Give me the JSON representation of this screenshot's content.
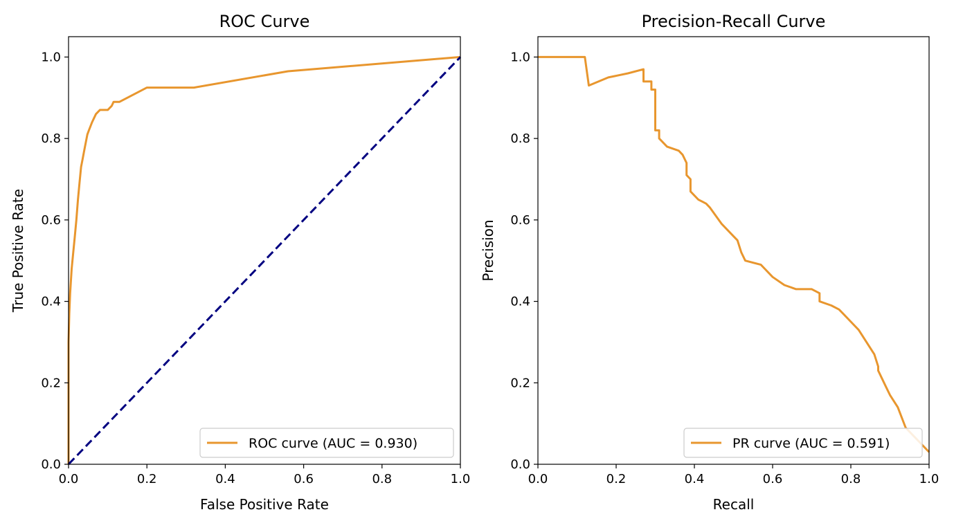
{
  "chart_data": [
    {
      "type": "line",
      "title": "ROC Curve",
      "xlabel": "False Positive Rate",
      "ylabel": "True Positive Rate",
      "xlim": [
        0,
        1
      ],
      "ylim": [
        0,
        1.05
      ],
      "xticks": [
        "0.0",
        "0.2",
        "0.4",
        "0.6",
        "0.8",
        "1.0"
      ],
      "yticks": [
        "0.0",
        "0.2",
        "0.4",
        "0.6",
        "0.8",
        "1.0"
      ],
      "grid": false,
      "legend_position": "lower-right",
      "series": [
        {
          "name": "ROC curve (AUC = 0.930)",
          "color": "#e8962e",
          "style": "solid",
          "x": [
            0.0,
            0.0,
            0.002,
            0.004,
            0.006,
            0.008,
            0.012,
            0.016,
            0.02,
            0.024,
            0.028,
            0.032,
            0.036,
            0.04,
            0.044,
            0.048,
            0.052,
            0.056,
            0.06,
            0.065,
            0.07,
            0.075,
            0.08,
            0.09,
            0.1,
            0.11,
            0.115,
            0.13,
            0.15,
            0.2,
            0.32,
            0.56,
            1.0
          ],
          "y": [
            0.0,
            0.3,
            0.37,
            0.42,
            0.45,
            0.48,
            0.52,
            0.56,
            0.6,
            0.65,
            0.69,
            0.73,
            0.75,
            0.77,
            0.79,
            0.81,
            0.82,
            0.83,
            0.84,
            0.85,
            0.86,
            0.865,
            0.87,
            0.87,
            0.87,
            0.88,
            0.89,
            0.89,
            0.9,
            0.925,
            0.925,
            0.965,
            1.0
          ]
        },
        {
          "name": "",
          "color": "#000080",
          "style": "dashed",
          "x": [
            0,
            1
          ],
          "y": [
            0,
            1
          ]
        }
      ]
    },
    {
      "type": "line",
      "title": "Precision-Recall Curve",
      "xlabel": "Recall",
      "ylabel": "Precision",
      "xlim": [
        0,
        1
      ],
      "ylim": [
        0,
        1.05
      ],
      "xticks": [
        "0.0",
        "0.2",
        "0.4",
        "0.6",
        "0.8",
        "1.0"
      ],
      "yticks": [
        "0.0",
        "0.2",
        "0.4",
        "0.6",
        "0.8",
        "1.0"
      ],
      "grid": false,
      "legend_position": "lower-right",
      "series": [
        {
          "name": "PR curve (AUC = 0.591)",
          "color": "#e8962e",
          "style": "solid",
          "x": [
            0.0,
            0.12,
            0.13,
            0.18,
            0.23,
            0.27,
            0.27,
            0.29,
            0.29,
            0.3,
            0.3,
            0.31,
            0.31,
            0.33,
            0.36,
            0.37,
            0.38,
            0.38,
            0.39,
            0.39,
            0.41,
            0.43,
            0.44,
            0.47,
            0.5,
            0.51,
            0.52,
            0.53,
            0.57,
            0.58,
            0.6,
            0.63,
            0.66,
            0.7,
            0.72,
            0.72,
            0.75,
            0.77,
            0.78,
            0.8,
            0.82,
            0.84,
            0.86,
            0.87,
            0.87,
            0.89,
            0.9,
            0.92,
            0.94,
            0.96,
            0.98,
            1.0
          ],
          "y": [
            1.0,
            1.0,
            0.93,
            0.95,
            0.96,
            0.97,
            0.94,
            0.94,
            0.92,
            0.92,
            0.82,
            0.82,
            0.8,
            0.78,
            0.77,
            0.76,
            0.74,
            0.71,
            0.7,
            0.67,
            0.65,
            0.64,
            0.63,
            0.59,
            0.56,
            0.55,
            0.52,
            0.5,
            0.49,
            0.48,
            0.46,
            0.44,
            0.43,
            0.43,
            0.42,
            0.4,
            0.39,
            0.38,
            0.37,
            0.35,
            0.33,
            0.3,
            0.27,
            0.24,
            0.23,
            0.19,
            0.17,
            0.14,
            0.09,
            0.07,
            0.05,
            0.03
          ]
        }
      ]
    }
  ]
}
